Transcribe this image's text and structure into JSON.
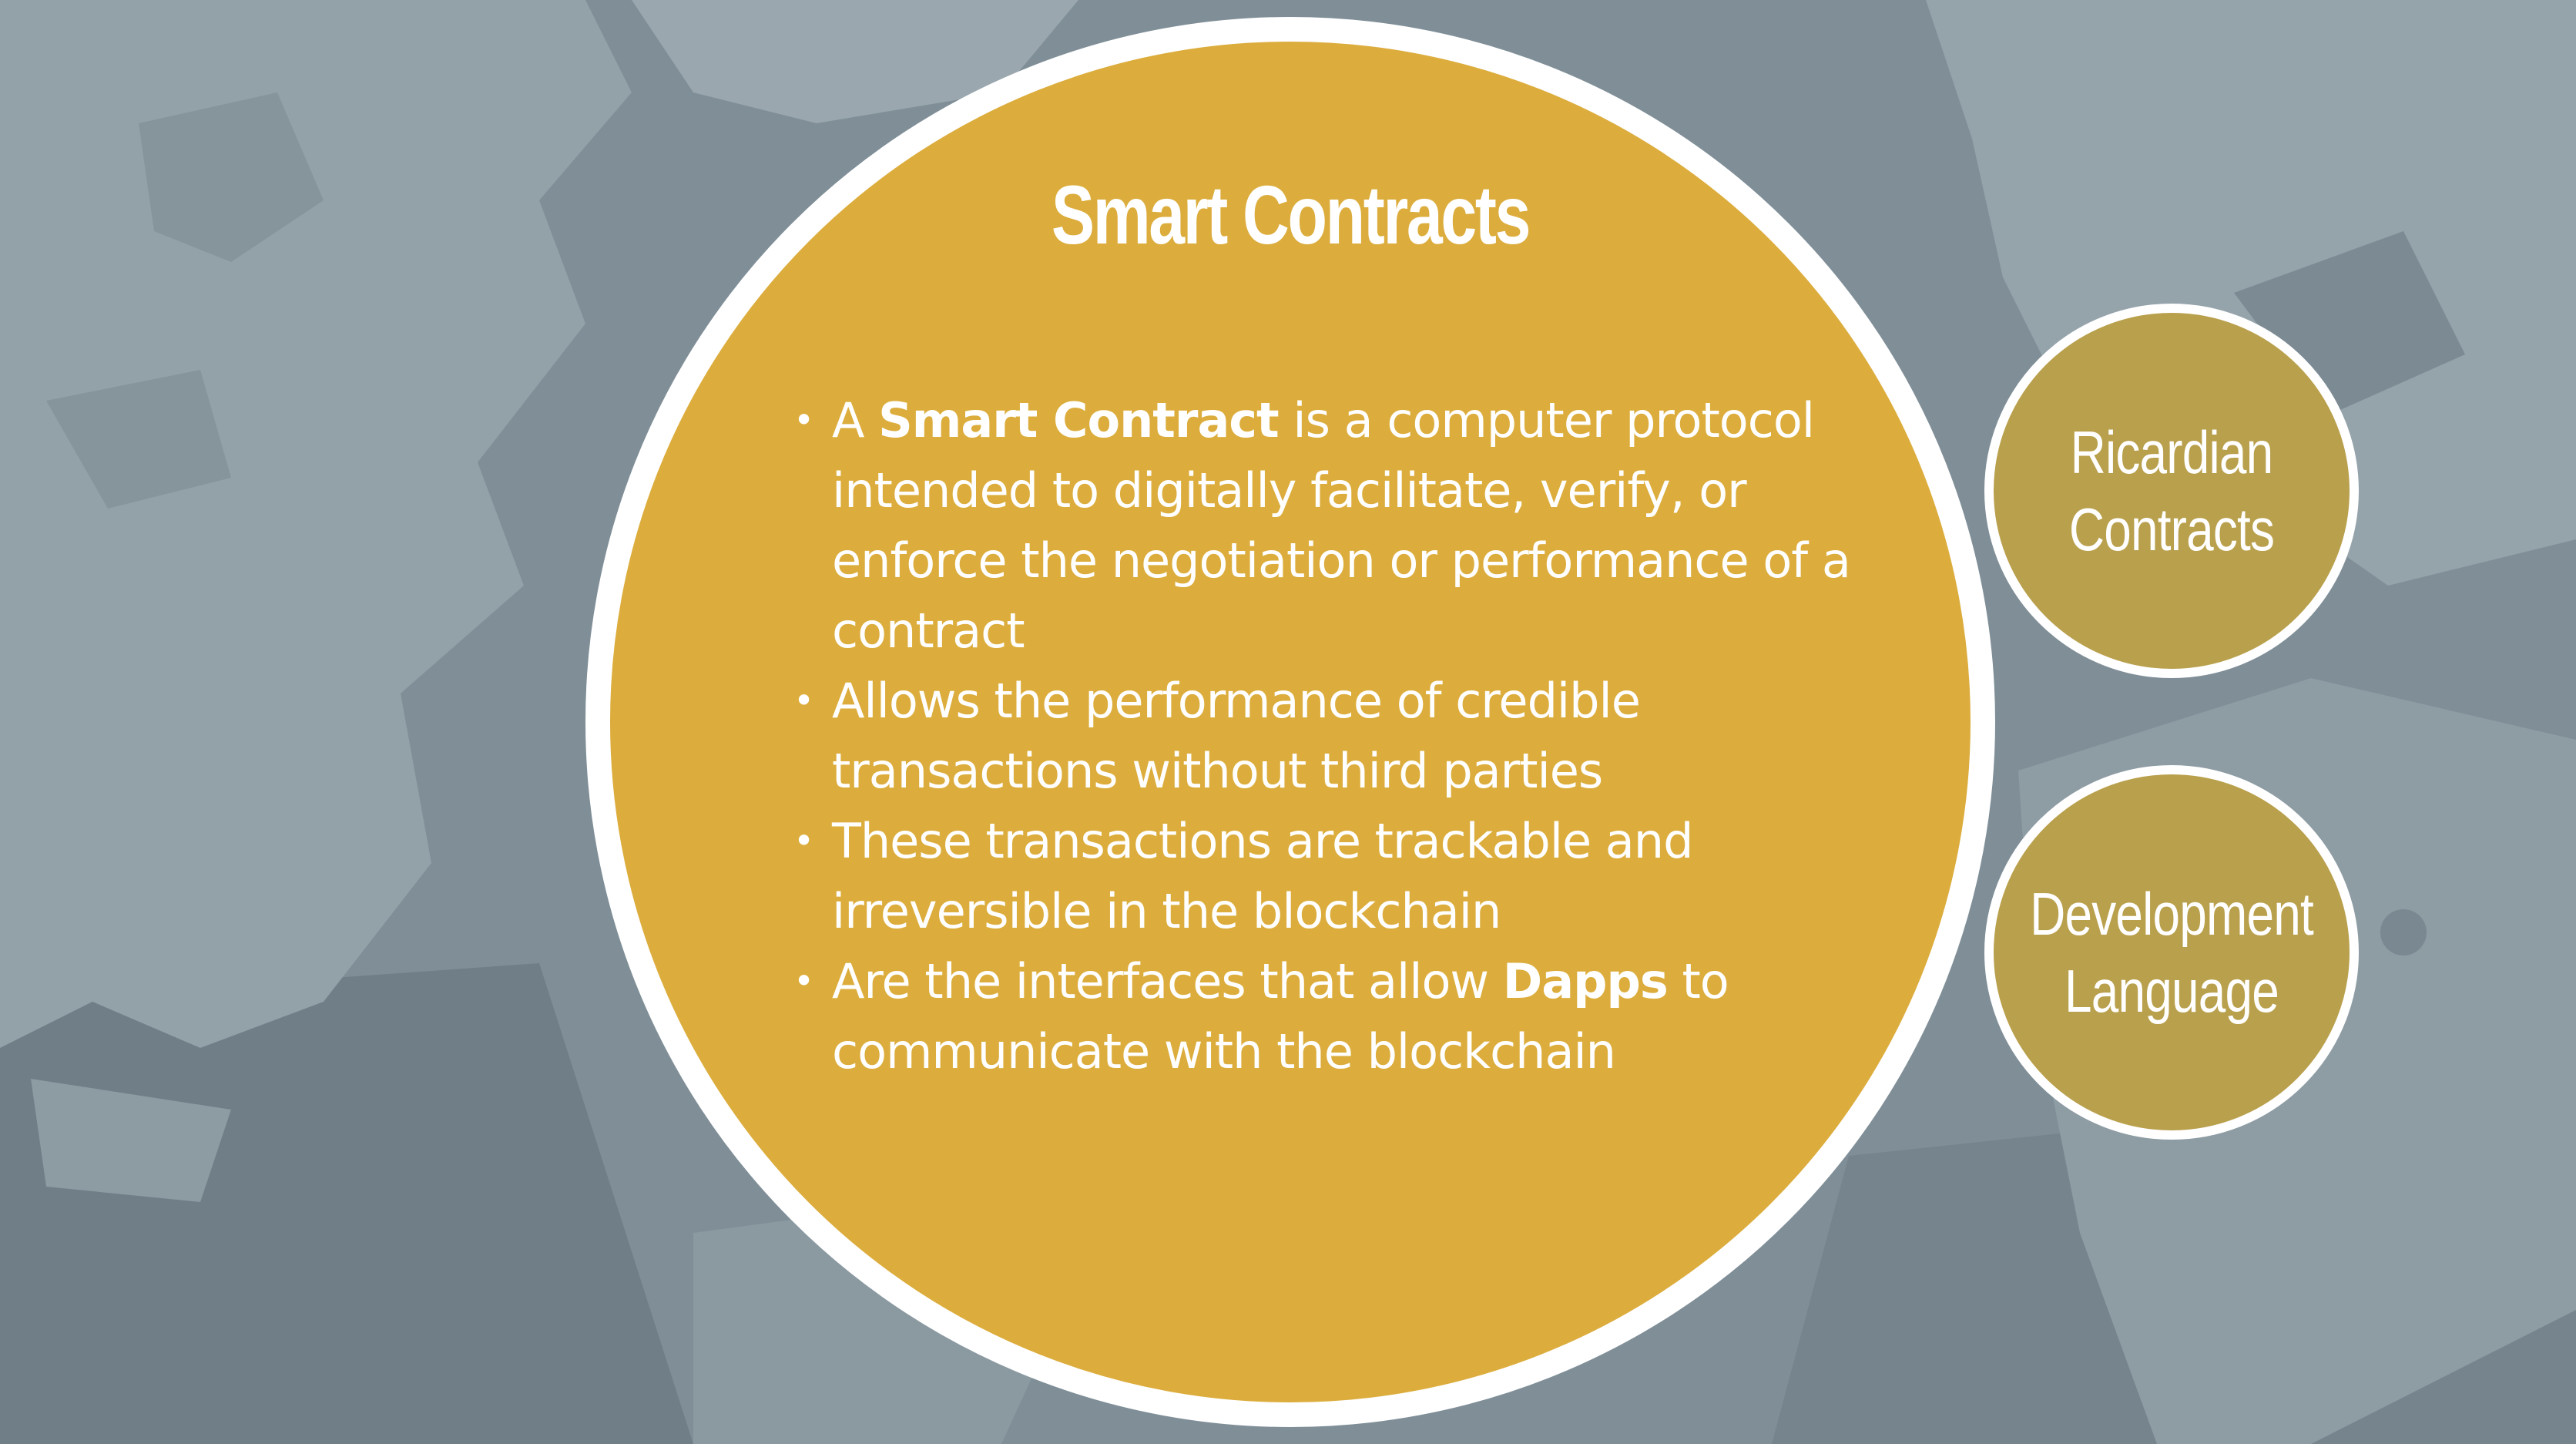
{
  "slide": {
    "title": "Smart Contracts",
    "bullets": [
      {
        "before": "A ",
        "bold": "Smart Contract",
        "after": " is a computer protocol intended to digitally facilitate, verify, or enforce the negotiation or performance of a contract"
      },
      {
        "before": "Allows the performance of credible transactions without third parties",
        "bold": "",
        "after": ""
      },
      {
        "before": "These transactions are trackable and irreversible in the blockchain",
        "bold": "",
        "after": ""
      },
      {
        "before": "Are the interfaces that allow ",
        "bold": "Dapps",
        "after": " to communicate with the blockchain"
      }
    ],
    "bullet_symbol": "•"
  },
  "side_topics": [
    {
      "label": "Ricardian\nContracts"
    },
    {
      "label": "Development\nLanguage"
    }
  ],
  "colors": {
    "main_circle": "#dcad3d",
    "side_circle": "#b9a04d",
    "background": "#7d8c95",
    "ring": "#ffffff"
  }
}
